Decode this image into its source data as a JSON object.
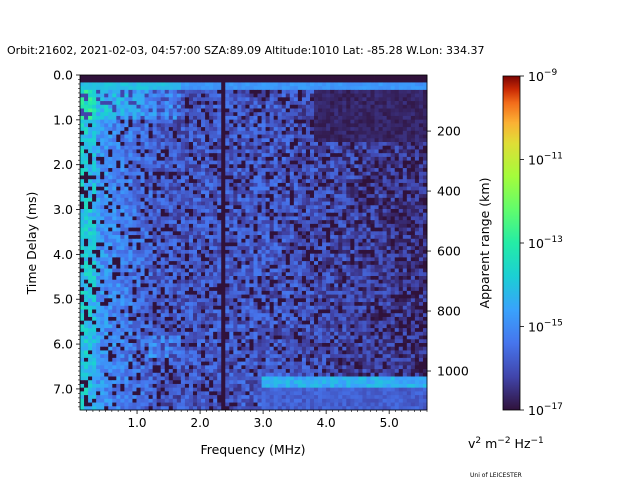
{
  "chart_data": {
    "type": "heatmap",
    "title": "Orbit:21602, 2021-02-03, 04:57:00 SZA:89.09 Altitude:1010 Lat: -85.28 W.Lon: 334.37",
    "xlabel": "Frequency (MHz)",
    "ylabel": "Time Delay (ms)",
    "y2label": "Apparent range (km)",
    "xlim": [
      0.095,
      5.6
    ],
    "ylim": [
      7.47,
      0.0
    ],
    "y2lim": [
      13,
      1130
    ],
    "xticks": [
      {
        "v": 1.0,
        "label": "1.0"
      },
      {
        "v": 2.0,
        "label": "2.0"
      },
      {
        "v": 3.0,
        "label": "3.0"
      },
      {
        "v": 4.0,
        "label": "4.0"
      },
      {
        "v": 5.0,
        "label": "5.0"
      }
    ],
    "yticks": [
      {
        "v": 0,
        "label": "0.0"
      },
      {
        "v": 1,
        "label": "1.0"
      },
      {
        "v": 2,
        "label": "2.0"
      },
      {
        "v": 3,
        "label": "3.0"
      },
      {
        "v": 4,
        "label": "4.0"
      },
      {
        "v": 5,
        "label": "5.0"
      },
      {
        "v": 6,
        "label": "6.0"
      },
      {
        "v": 7,
        "label": "7.0"
      }
    ],
    "y2ticks": [
      {
        "v": 200,
        "label": "200"
      },
      {
        "v": 400,
        "label": "400"
      },
      {
        "v": 600,
        "label": "600"
      },
      {
        "v": 800,
        "label": "800"
      },
      {
        "v": 1000,
        "label": "1000"
      }
    ],
    "grid": {
      "freq_bins": 86,
      "delay_bins": 90
    },
    "colorbar": {
      "colormap": "turbo",
      "scale": "log",
      "range_log10": [
        -17,
        -9
      ],
      "ticks": [
        {
          "exp": -9,
          "label": "10",
          "sup": "−9"
        },
        {
          "exp": -11,
          "label": "10",
          "sup": "−11"
        },
        {
          "exp": -13,
          "label": "10",
          "sup": "−13"
        },
        {
          "exp": -15,
          "label": "10",
          "sup": "−15"
        },
        {
          "exp": -17,
          "label": "10",
          "sup": "−17"
        }
      ],
      "unit": {
        "base1": "v",
        "sup1": "2",
        "base2": " m",
        "sup2": "−2",
        "base3": " Hz",
        "sup3": "−1"
      }
    },
    "features": {
      "dark_line_mhz": 2.35,
      "bright_band_ms": 6.85,
      "bright_band_from_mhz": 3.0
    }
  },
  "credit": "Uni of LEICESTER"
}
